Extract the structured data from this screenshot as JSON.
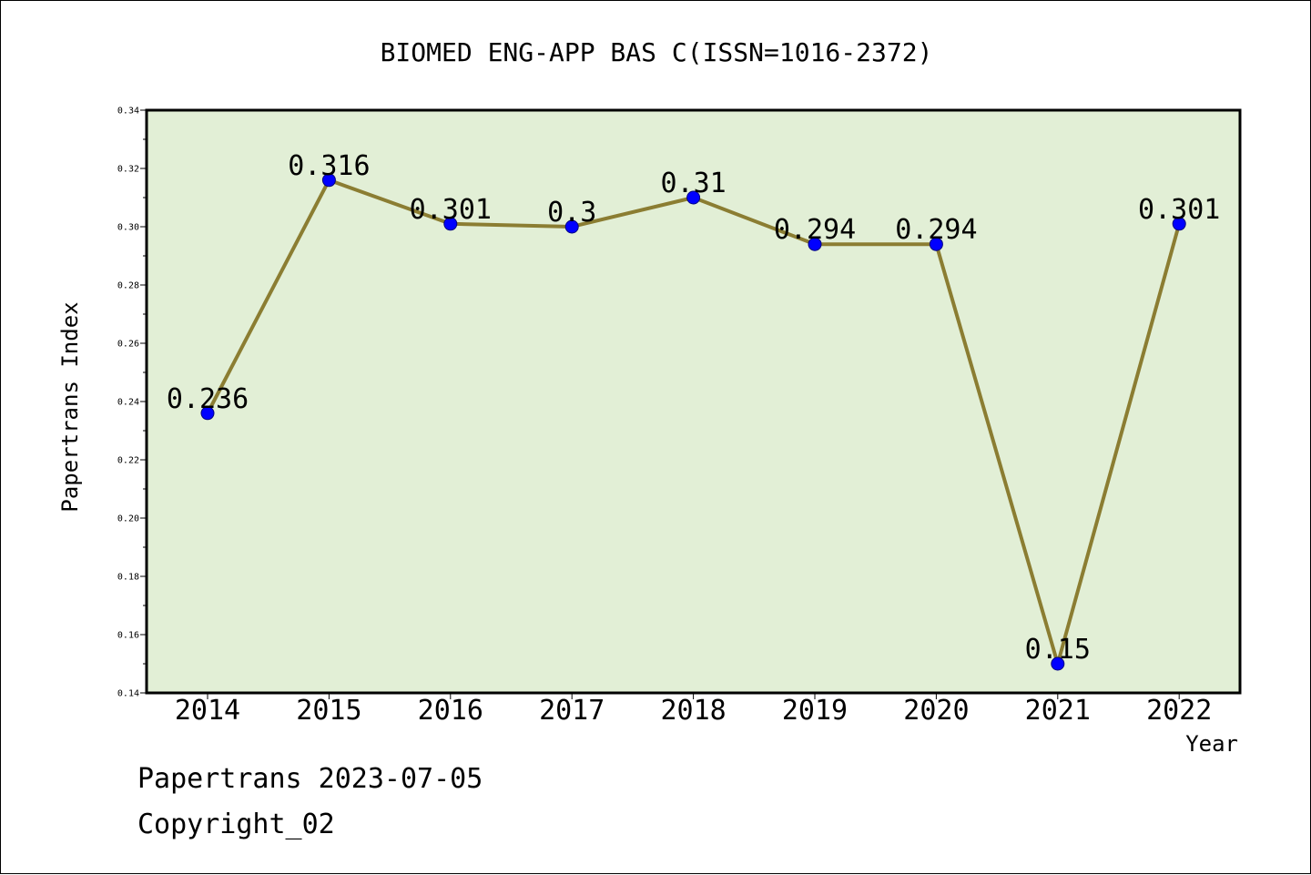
{
  "colors": {
    "plot_background": "#e2efd6",
    "line": "#8b7d32",
    "marker": "#0000ff",
    "marker_edge": "#000080",
    "frame": "#000000"
  },
  "chart_data": {
    "type": "line",
    "title": "BIOMED ENG-APP BAS C(ISSN=1016-2372)",
    "xlabel": "Year",
    "ylabel": "Papertrans Index",
    "categories": [
      "2014",
      "2015",
      "2016",
      "2017",
      "2018",
      "2019",
      "2020",
      "2021",
      "2022"
    ],
    "values": [
      0.236,
      0.316,
      0.301,
      0.3,
      0.31,
      0.294,
      0.294,
      0.15,
      0.301
    ],
    "data_labels": [
      "0.236",
      "0.316",
      "0.301",
      "0.3",
      "0.31",
      "0.294",
      "0.294",
      "0.15",
      "0.301"
    ],
    "ylim": [
      0.14,
      0.34
    ],
    "yticks": [
      0.14,
      0.16,
      0.18,
      0.2,
      0.22,
      0.24,
      0.26,
      0.28,
      0.3,
      0.32,
      0.34
    ],
    "ytick_labels": [
      "0.14",
      "0.16",
      "0.18",
      "0.20",
      "0.22",
      "0.24",
      "0.26",
      "0.28",
      "0.30",
      "0.32",
      "0.34"
    ],
    "grid": false,
    "legend": "none"
  },
  "footer": {
    "line1": "Papertrans 2023-07-05",
    "line2": "Copyright_02"
  }
}
